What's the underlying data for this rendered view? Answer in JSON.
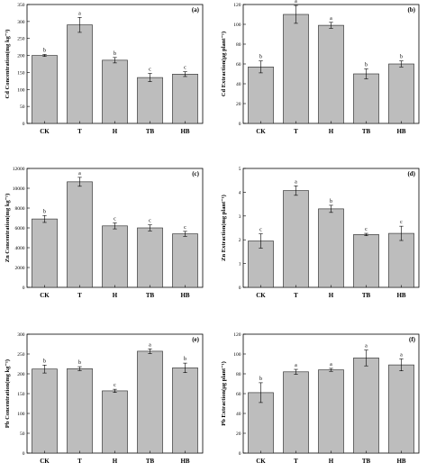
{
  "chart_data": [
    {
      "type": "bar",
      "panel": "(a)",
      "ylabel": "Cd Concentration(mg kg⁻¹)",
      "categories": [
        "CK",
        "T",
        "H",
        "TB",
        "HB"
      ],
      "values": [
        200,
        290,
        186,
        135,
        145
      ],
      "errors": [
        3,
        22,
        8,
        12,
        7
      ],
      "letters": [
        "b",
        "a",
        "b",
        "c",
        "c"
      ],
      "ylim": [
        0,
        350
      ],
      "yticks": [
        0,
        50,
        100,
        150,
        200,
        250,
        300,
        350
      ]
    },
    {
      "type": "bar",
      "panel": "(b)",
      "ylabel": "Cd Extraction(μg plant⁻¹)",
      "categories": [
        "CK",
        "T",
        "H",
        "TB",
        "HB"
      ],
      "values": [
        57,
        110,
        99,
        50,
        60
      ],
      "errors": [
        6,
        9,
        3,
        5,
        3
      ],
      "letters": [
        "b",
        "a",
        "a",
        "b",
        "b"
      ],
      "ylim": [
        0,
        120
      ],
      "yticks": [
        0,
        20,
        40,
        60,
        80,
        100,
        120
      ]
    },
    {
      "type": "bar",
      "panel": "(c)",
      "ylabel": "Zn Concentration(mg kg⁻¹)",
      "categories": [
        "CK",
        "T",
        "H",
        "TB",
        "HB"
      ],
      "values": [
        6900,
        10650,
        6200,
        6000,
        5400
      ],
      "errors": [
        350,
        450,
        300,
        300,
        250
      ],
      "letters": [
        "b",
        "a",
        "c",
        "c",
        "c"
      ],
      "ylim": [
        0,
        12000
      ],
      "yticks": [
        0,
        2000,
        4000,
        6000,
        8000,
        10000,
        12000
      ]
    },
    {
      "type": "bar",
      "panel": "(d)",
      "ylabel": "Zn Extraction(mg plant⁻¹)",
      "categories": [
        "CK",
        "T",
        "H",
        "TB",
        "HB"
      ],
      "values": [
        1.95,
        4.07,
        3.3,
        2.22,
        2.27
      ],
      "errors": [
        0.3,
        0.2,
        0.15,
        0.05,
        0.3
      ],
      "letters": [
        "c",
        "a",
        "b",
        "c",
        "c"
      ],
      "ylim": [
        0,
        5
      ],
      "yticks": [
        0,
        1,
        2,
        3,
        4,
        5
      ]
    },
    {
      "type": "bar",
      "panel": "(e)",
      "ylabel": "Pb Concentration(mg kg⁻¹)",
      "categories": [
        "CK",
        "T",
        "H",
        "TB",
        "HB"
      ],
      "values": [
        212,
        213,
        157,
        257,
        215
      ],
      "errors": [
        10,
        5,
        4,
        6,
        12
      ],
      "letters": [
        "b",
        "b",
        "c",
        "a",
        "b"
      ],
      "ylim": [
        0,
        300
      ],
      "yticks": [
        0,
        50,
        100,
        150,
        200,
        250,
        300
      ]
    },
    {
      "type": "bar",
      "panel": "(f)",
      "ylabel": "Pb Extraction(μg plant⁻¹)",
      "categories": [
        "CK",
        "T",
        "H",
        "TB",
        "HB"
      ],
      "values": [
        61,
        82,
        84,
        96,
        89
      ],
      "errors": [
        10,
        2.5,
        1.5,
        8,
        6
      ],
      "letters": [
        "b",
        "a",
        "a",
        "a",
        "a"
      ],
      "ylim": [
        0,
        120
      ],
      "yticks": [
        0,
        20,
        40,
        60,
        80,
        100,
        120
      ]
    }
  ],
  "colors": {
    "bar_fill": "#bdbdbd",
    "bar_stroke": "#222222",
    "axis": "#000000"
  }
}
